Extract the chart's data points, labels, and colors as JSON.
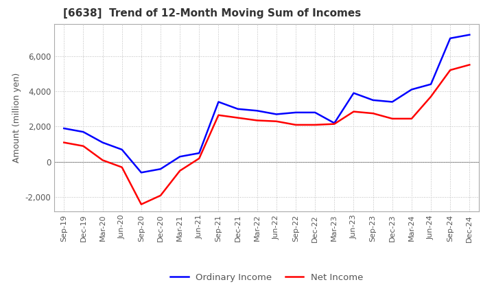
{
  "title": "[6638]  Trend of 12-Month Moving Sum of Incomes",
  "ylabel": "Amount (million yen)",
  "x_labels": [
    "Sep-19",
    "Dec-19",
    "Mar-20",
    "Jun-20",
    "Sep-20",
    "Dec-20",
    "Mar-21",
    "Jun-21",
    "Sep-21",
    "Dec-21",
    "Mar-22",
    "Jun-22",
    "Sep-22",
    "Dec-22",
    "Mar-23",
    "Jun-23",
    "Sep-23",
    "Dec-23",
    "Mar-24",
    "Jun-24",
    "Sep-24",
    "Dec-24"
  ],
  "ordinary_income": [
    1900,
    1700,
    1100,
    700,
    -600,
    -400,
    300,
    500,
    3400,
    3000,
    2900,
    2700,
    2800,
    2800,
    2200,
    3900,
    3500,
    3400,
    4100,
    4400,
    7000,
    7200
  ],
  "net_income": [
    1100,
    900,
    100,
    -300,
    -2400,
    -1900,
    -500,
    200,
    2650,
    2500,
    2350,
    2300,
    2100,
    2100,
    2150,
    2850,
    2750,
    2450,
    2450,
    3700,
    5200,
    5500
  ],
  "ordinary_color": "#0000ff",
  "net_color": "#ff0000",
  "ylim": [
    -2800,
    7800
  ],
  "yticks": [
    -2000,
    0,
    2000,
    4000,
    6000
  ],
  "background_color": "#ffffff",
  "grid_color": "#bbbbbb",
  "title_color": "#333333",
  "label_color": "#555555"
}
